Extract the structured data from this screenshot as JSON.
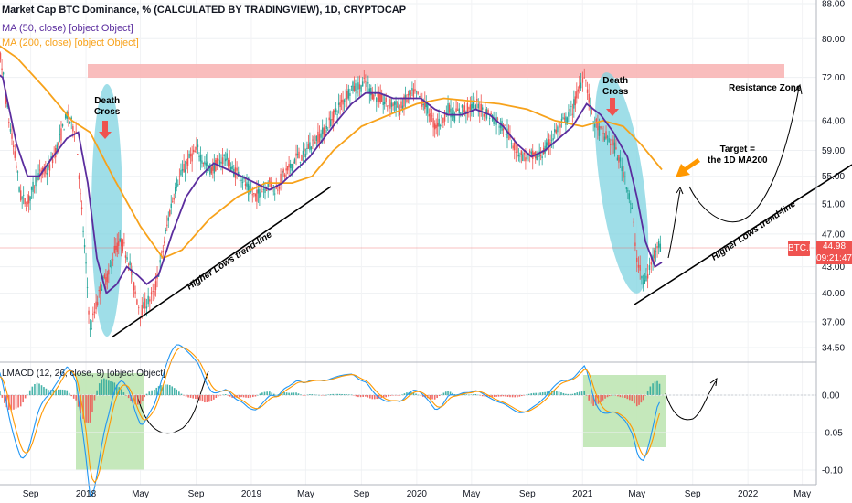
{
  "header": {
    "title": "Market Cap BTC Dominance, % (CALCULATED BY TRADINGVIEW), 1D, CRYPTOCAP",
    "ma50": "MA (50, close) [object Object]",
    "ma200": "MA (200, close) [object Object]",
    "lmacd": "LMACD (12, 26, close, 9) [object Object]"
  },
  "badges": {
    "symbol": "BTC.D",
    "price": "44.98",
    "countdown": "09:21:47"
  },
  "annotations": {
    "death_cross_1": "Death\nCross",
    "death_cross_2": "Death\nCross",
    "resistance": "Resistance Zone",
    "target": "Target =\nthe 1D MA200",
    "trendline_1": "Higher Lows trend-line",
    "trendline_2": "Higher Lows trend-line"
  },
  "colors": {
    "candle_up": "#26a69a",
    "candle_down": "#ef5350",
    "ma50": "#5b2d9e",
    "ma200": "#f7a21b",
    "resistance_fill": "#f8b6b6",
    "cycle_fill": "#7fd3e0",
    "macd_box_fill": "#bfe5b4",
    "macd_line": "#2196f3",
    "signal_line": "#ff9800",
    "arrow_red": "#ef5350",
    "arrow_orange": "#ff9800"
  },
  "chart_data": {
    "type": "line",
    "price_axis": {
      "ticks": [
        "88.00",
        "80.00",
        "72.00",
        "64.00",
        "59.00",
        "55.00",
        "51.00",
        "47.00",
        "43.00",
        "40.00",
        "37.00",
        "34.50"
      ],
      "scale": "log"
    },
    "time_axis": [
      "Sep",
      "2018",
      "May",
      "Sep",
      "2019",
      "May",
      "Sep",
      "2020",
      "May",
      "Sep",
      "2021",
      "May",
      "Sep",
      "2022",
      "May"
    ],
    "macd_axis": [
      "0.00",
      "-0.05",
      "-0.10"
    ],
    "series": [
      {
        "name": "BTC.D",
        "values": [
          [
            "2017-06-01",
            70
          ],
          [
            "2017-06-20",
            80
          ],
          [
            "2017-07-15",
            64
          ],
          [
            "2017-08-10",
            52
          ],
          [
            "2017-08-25",
            51
          ],
          [
            "2017-09-15",
            55
          ],
          [
            "2017-10-10",
            56
          ],
          [
            "2017-11-01",
            60
          ],
          [
            "2017-11-20",
            65
          ],
          [
            "2017-12-10",
            62
          ],
          [
            "2017-12-20",
            52
          ],
          [
            "2018-01-01",
            43
          ],
          [
            "2018-01-10",
            36
          ],
          [
            "2018-01-20",
            38
          ],
          [
            "2018-02-05",
            41
          ],
          [
            "2018-02-20",
            42
          ],
          [
            "2018-03-05",
            45
          ],
          [
            "2018-03-20",
            46
          ],
          [
            "2018-04-05",
            44
          ],
          [
            "2018-04-20",
            40
          ],
          [
            "2018-05-01",
            38
          ],
          [
            "2018-05-15",
            39
          ],
          [
            "2018-06-01",
            40
          ],
          [
            "2018-06-20",
            45
          ],
          [
            "2018-07-05",
            50
          ],
          [
            "2018-07-20",
            54
          ],
          [
            "2018-08-05",
            56
          ],
          [
            "2018-08-20",
            58
          ],
          [
            "2018-09-05",
            59
          ],
          [
            "2018-09-20",
            57
          ],
          [
            "2018-10-05",
            56
          ],
          [
            "2018-10-20",
            57
          ],
          [
            "2018-11-05",
            58
          ],
          [
            "2018-11-20",
            56
          ],
          [
            "2018-12-10",
            55
          ],
          [
            "2018-12-25",
            53
          ],
          [
            "2019-01-10",
            52
          ],
          [
            "2019-01-25",
            53
          ],
          [
            "2019-02-10",
            54
          ],
          [
            "2019-02-25",
            53
          ],
          [
            "2019-03-10",
            55
          ],
          [
            "2019-03-25",
            56
          ],
          [
            "2019-04-10",
            58
          ],
          [
            "2019-04-25",
            58
          ],
          [
            "2019-05-10",
            60
          ],
          [
            "2019-05-25",
            61
          ],
          [
            "2019-06-10",
            62
          ],
          [
            "2019-06-25",
            64
          ],
          [
            "2019-07-10",
            66
          ],
          [
            "2019-07-25",
            68
          ],
          [
            "2019-08-10",
            70
          ],
          [
            "2019-08-25",
            70
          ],
          [
            "2019-09-10",
            71
          ],
          [
            "2019-09-25",
            69
          ],
          [
            "2019-10-10",
            68
          ],
          [
            "2019-10-25",
            67
          ],
          [
            "2019-11-10",
            67
          ],
          [
            "2019-11-25",
            66
          ],
          [
            "2019-12-10",
            68
          ],
          [
            "2019-12-25",
            69
          ],
          [
            "2020-01-10",
            68
          ],
          [
            "2020-01-25",
            66
          ],
          [
            "2020-02-10",
            63
          ],
          [
            "2020-02-25",
            64
          ],
          [
            "2020-03-10",
            66
          ],
          [
            "2020-03-25",
            65
          ],
          [
            "2020-04-10",
            66
          ],
          [
            "2020-04-25",
            66
          ],
          [
            "2020-05-10",
            67
          ],
          [
            "2020-05-25",
            66
          ],
          [
            "2020-06-10",
            65
          ],
          [
            "2020-06-25",
            64
          ],
          [
            "2020-07-10",
            63
          ],
          [
            "2020-07-25",
            61
          ],
          [
            "2020-08-10",
            59
          ],
          [
            "2020-08-25",
            58
          ],
          [
            "2020-09-10",
            58
          ],
          [
            "2020-09-25",
            58
          ],
          [
            "2020-10-10",
            59
          ],
          [
            "2020-10-25",
            61
          ],
          [
            "2020-11-10",
            63
          ],
          [
            "2020-11-25",
            64
          ],
          [
            "2020-12-10",
            66
          ],
          [
            "2020-12-25",
            70
          ],
          [
            "2021-01-05",
            73
          ],
          [
            "2021-01-15",
            68
          ],
          [
            "2021-01-25",
            64
          ],
          [
            "2021-02-10",
            62
          ],
          [
            "2021-02-25",
            61
          ],
          [
            "2021-03-10",
            60
          ],
          [
            "2021-03-25",
            57
          ],
          [
            "2021-04-05",
            55
          ],
          [
            "2021-04-20",
            50
          ],
          [
            "2021-05-01",
            44
          ],
          [
            "2021-05-15",
            41
          ],
          [
            "2021-05-25",
            42
          ],
          [
            "2021-06-05",
            44
          ],
          [
            "2021-06-15",
            46
          ],
          [
            "2021-06-25",
            45
          ]
        ]
      },
      {
        "name": "MA (50, close)",
        "values": [
          [
            "2017-06-01",
            74
          ],
          [
            "2017-07-01",
            72
          ],
          [
            "2017-08-01",
            60
          ],
          [
            "2017-08-25",
            55
          ],
          [
            "2017-09-20",
            55
          ],
          [
            "2017-10-20",
            58
          ],
          [
            "2017-11-20",
            61
          ],
          [
            "2017-12-15",
            62
          ],
          [
            "2018-01-05",
            54
          ],
          [
            "2018-01-25",
            44
          ],
          [
            "2018-02-15",
            40
          ],
          [
            "2018-03-10",
            41
          ],
          [
            "2018-04-01",
            43
          ],
          [
            "2018-04-25",
            42
          ],
          [
            "2018-05-15",
            41
          ],
          [
            "2018-06-10",
            42
          ],
          [
            "2018-07-10",
            47
          ],
          [
            "2018-08-10",
            52
          ],
          [
            "2018-09-10",
            55
          ],
          [
            "2018-10-10",
            57
          ],
          [
            "2018-11-10",
            56
          ],
          [
            "2018-12-10",
            55
          ],
          [
            "2019-01-10",
            54
          ],
          [
            "2019-02-10",
            53
          ],
          [
            "2019-03-10",
            54
          ],
          [
            "2019-04-10",
            56
          ],
          [
            "2019-05-10",
            58
          ],
          [
            "2019-06-10",
            61
          ],
          [
            "2019-07-10",
            64
          ],
          [
            "2019-08-10",
            67
          ],
          [
            "2019-09-10",
            69
          ],
          [
            "2019-10-10",
            69
          ],
          [
            "2019-11-10",
            68
          ],
          [
            "2019-12-10",
            68
          ],
          [
            "2020-01-10",
            68
          ],
          [
            "2020-02-10",
            66
          ],
          [
            "2020-03-10",
            65
          ],
          [
            "2020-04-10",
            65
          ],
          [
            "2020-05-10",
            66
          ],
          [
            "2020-06-10",
            65
          ],
          [
            "2020-07-10",
            63
          ],
          [
            "2020-08-10",
            60
          ],
          [
            "2020-09-10",
            58
          ],
          [
            "2020-10-10",
            59
          ],
          [
            "2020-11-10",
            61
          ],
          [
            "2020-12-10",
            63
          ],
          [
            "2021-01-10",
            67
          ],
          [
            "2021-02-10",
            65
          ],
          [
            "2021-03-10",
            62
          ],
          [
            "2021-04-10",
            58
          ],
          [
            "2021-05-01",
            52
          ],
          [
            "2021-05-20",
            46
          ],
          [
            "2021-06-10",
            43
          ],
          [
            "2021-06-25",
            43.5
          ]
        ]
      },
      {
        "name": "MA (200, close)",
        "values": [
          [
            "2017-06-01",
            80
          ],
          [
            "2017-08-01",
            76
          ],
          [
            "2017-10-01",
            70
          ],
          [
            "2017-12-01",
            64
          ],
          [
            "2018-01-10",
            62
          ],
          [
            "2018-03-01",
            55
          ],
          [
            "2018-05-01",
            48
          ],
          [
            "2018-06-20",
            44
          ],
          [
            "2018-08-01",
            45
          ],
          [
            "2018-10-01",
            49
          ],
          [
            "2018-12-01",
            52
          ],
          [
            "2019-02-01",
            54
          ],
          [
            "2019-04-01",
            54
          ],
          [
            "2019-05-15",
            55
          ],
          [
            "2019-07-01",
            59
          ],
          [
            "2019-09-01",
            63
          ],
          [
            "2019-11-01",
            65
          ],
          [
            "2020-01-01",
            67
          ],
          [
            "2020-03-01",
            68
          ],
          [
            "2020-05-01",
            67.5
          ],
          [
            "2020-07-01",
            67
          ],
          [
            "2020-09-01",
            66
          ],
          [
            "2020-11-01",
            64
          ],
          [
            "2021-01-01",
            63
          ],
          [
            "2021-02-15",
            64
          ],
          [
            "2021-04-01",
            63
          ],
          [
            "2021-05-10",
            60
          ],
          [
            "2021-06-25",
            56
          ]
        ]
      }
    ]
  }
}
